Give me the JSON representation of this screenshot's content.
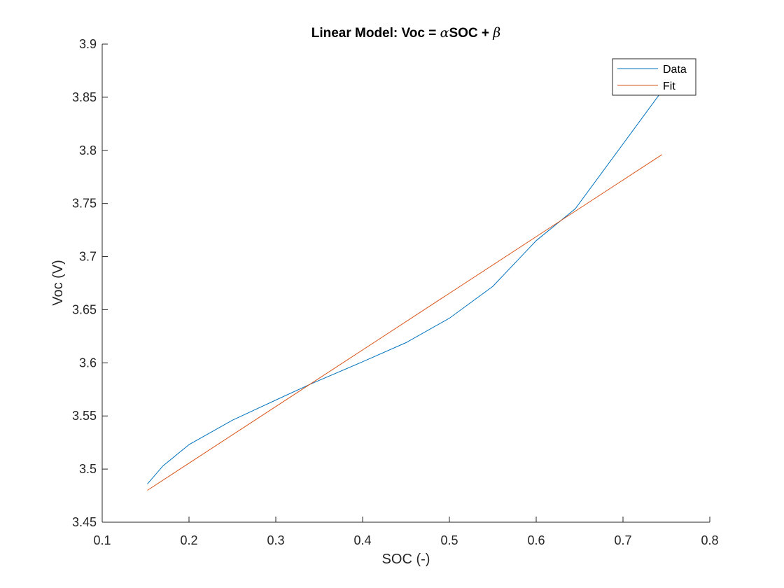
{
  "chart_data": {
    "type": "line",
    "title": {
      "prefix": "Linear Model: Voc = ",
      "alpha": "α",
      "middle": "SOC + ",
      "beta": "β"
    },
    "xlabel": "SOC (-)",
    "ylabel": "Voc (V)",
    "xlim": [
      0.1,
      0.8
    ],
    "ylim": [
      3.45,
      3.9
    ],
    "xticks": [
      0.1,
      0.2,
      0.3,
      0.4,
      0.5,
      0.6,
      0.7,
      0.8
    ],
    "xtick_labels": [
      "0.1",
      "0.2",
      "0.3",
      "0.4",
      "0.5",
      "0.6",
      "0.7",
      "0.8"
    ],
    "yticks": [
      3.45,
      3.5,
      3.55,
      3.6,
      3.65,
      3.7,
      3.75,
      3.8,
      3.85,
      3.9
    ],
    "ytick_labels": [
      "3.45",
      "3.5",
      "3.55",
      "3.6",
      "3.65",
      "3.7",
      "3.75",
      "3.8",
      "3.85",
      "3.9"
    ],
    "grid": false,
    "legend_position": "top-right",
    "series": [
      {
        "name": "Data",
        "color": "#0072BD",
        "x": [
          0.152,
          0.17,
          0.2,
          0.25,
          0.3,
          0.34,
          0.4,
          0.45,
          0.5,
          0.55,
          0.6,
          0.645,
          0.7,
          0.745
        ],
        "y": [
          3.486,
          3.503,
          3.523,
          3.546,
          3.565,
          3.58,
          3.601,
          3.619,
          3.642,
          3.672,
          3.715,
          3.745,
          3.806,
          3.856
        ]
      },
      {
        "name": "Fit",
        "color": "#D95319",
        "x": [
          0.152,
          0.745
        ],
        "y": [
          3.48,
          3.796
        ]
      }
    ]
  }
}
